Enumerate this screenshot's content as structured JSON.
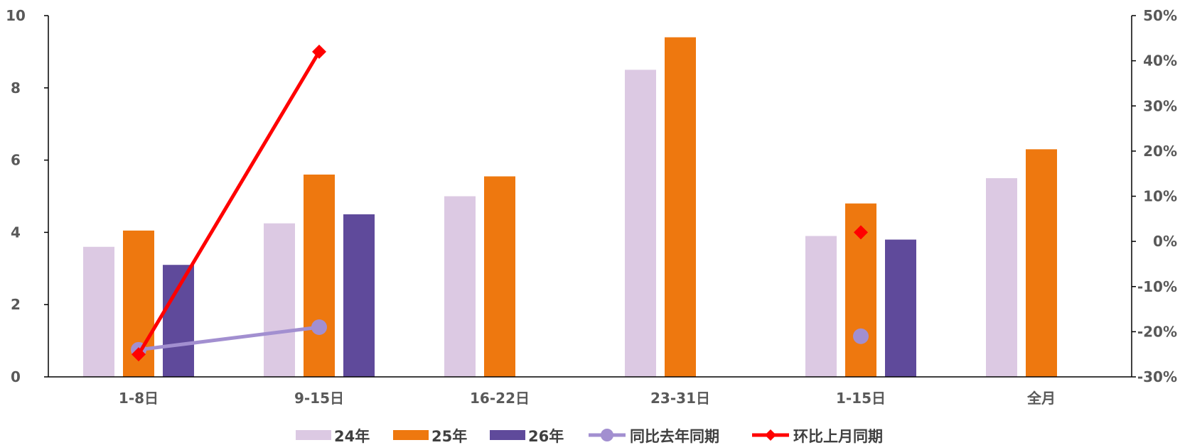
{
  "chart_data": {
    "type": "bar",
    "categories": [
      "1-8日",
      "9-15日",
      "16-22日",
      "23-31日",
      "1-15日",
      "全月"
    ],
    "series": [
      {
        "name": "24年",
        "type": "bar",
        "axis": "left",
        "color": "#DCC9E3",
        "values": [
          3.6,
          4.25,
          5.0,
          8.5,
          3.9,
          5.5
        ]
      },
      {
        "name": "25年",
        "type": "bar",
        "axis": "left",
        "color": "#EE780F",
        "values": [
          4.05,
          5.6,
          5.55,
          9.4,
          4.8,
          6.3
        ]
      },
      {
        "name": "26年",
        "type": "bar",
        "axis": "left",
        "color": "#5F4A9B",
        "values": [
          3.1,
          4.5,
          null,
          null,
          3.8,
          null
        ]
      },
      {
        "name": "同比去年同期",
        "type": "line",
        "axis": "right",
        "color": "#A28FD0",
        "values": [
          -24.0,
          -19.0,
          null,
          null,
          -21.0,
          null
        ]
      },
      {
        "name": "环比上月同期",
        "type": "line",
        "axis": "right",
        "color": "#FF0000",
        "values": [
          -25.0,
          42.0,
          null,
          null,
          2.0,
          null
        ]
      }
    ],
    "y_left": {
      "min": 0,
      "max": 10,
      "ticks": [
        0,
        2,
        4,
        6,
        8,
        10
      ]
    },
    "y_right": {
      "min": -30,
      "max": 50,
      "ticks": [
        -30,
        -20,
        -10,
        0,
        10,
        20,
        30,
        40,
        50
      ],
      "tick_labels": [
        "-30%",
        "-20%",
        "-10%",
        "0%",
        "10%",
        "20%",
        "30%",
        "40%",
        "50%"
      ]
    },
    "legend_position": "bottom",
    "grid": false
  }
}
